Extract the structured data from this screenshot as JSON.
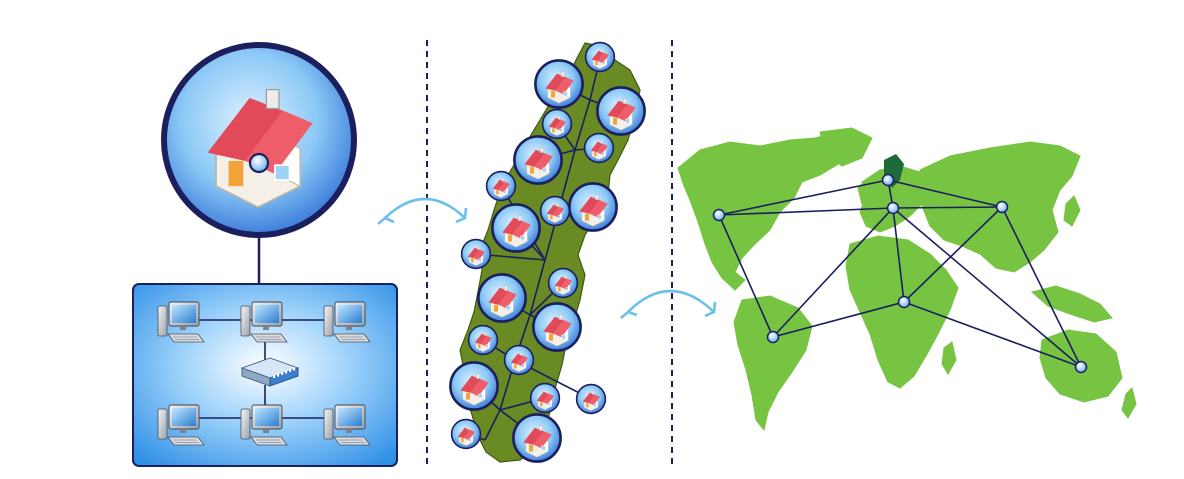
{
  "diagram": {
    "panels": [
      {
        "id": "home-lan",
        "kind": "house-with-local-network"
      },
      {
        "id": "national-network",
        "kind": "country-map-with-homes"
      },
      {
        "id": "global-network",
        "kind": "world-map-with-nodes"
      }
    ],
    "icons": {
      "house": "house-icon",
      "computer": "desktop-computer-icon",
      "switch": "network-switch-icon",
      "node": "network-node-icon",
      "arrow": "curved-double-arrow-icon"
    },
    "colors": {
      "navy": "#1b1f5e",
      "land_green": "#76c442",
      "country_green": "#6a8a24",
      "highlight_green": "#1f6a3a",
      "circle_blue": "#2f6fd6",
      "lan_blue": "#2f8fe6",
      "arrow_blue": "#6cc0ea",
      "roof_red": "#e04a5a"
    },
    "lan": {
      "computers": 6,
      "switches": 1
    },
    "country_homes": 22,
    "world_nodes": 7
  }
}
